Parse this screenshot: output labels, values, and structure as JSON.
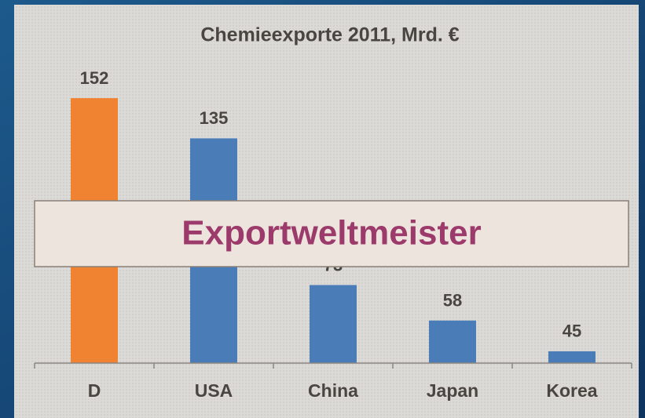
{
  "chart_data": {
    "type": "bar",
    "title": "Chemieexporte 2011, Mrd. €",
    "categories": [
      "D",
      "USA",
      "China",
      "Japan",
      "Korea"
    ],
    "values": [
      152,
      135,
      73,
      58,
      45
    ],
    "colors": [
      "#f08331",
      "#4a7db8",
      "#4a7db8",
      "#4a7db8",
      "#4a7db8"
    ],
    "ylim": [
      40,
      160
    ],
    "annotation": "Exportweltmeister"
  }
}
